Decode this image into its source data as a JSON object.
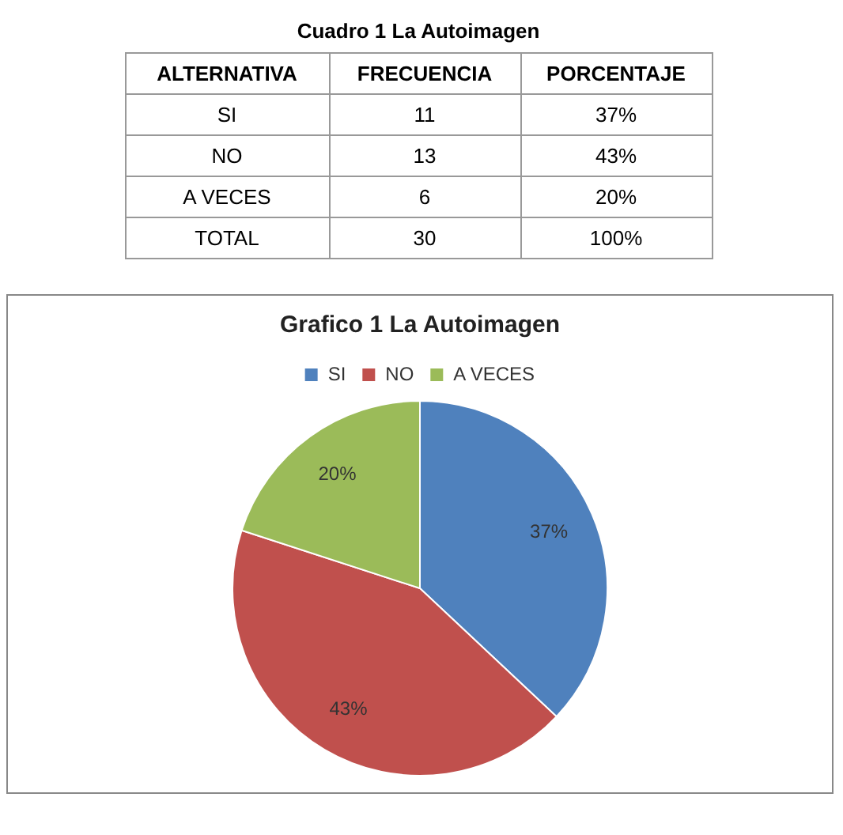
{
  "chart_data": [
    {
      "type": "other",
      "title": "Cuadro 1 La Autoimagen",
      "annotations": [
        "ALTERNATIVA",
        "FRECUENCIA",
        "PORCENTAJE",
        "SI",
        "11",
        "37%",
        "NO",
        "13",
        "43%",
        "A VECES",
        "6",
        "20%",
        "TOTAL",
        "30",
        "100%"
      ]
    },
    {
      "type": "pie",
      "title": "Grafico 1 La Autoimagen",
      "categories": [
        "SI",
        "NO",
        "A VECES"
      ],
      "values": [
        37,
        43,
        20
      ],
      "colors": [
        "#4f81bd",
        "#c0504d",
        "#9bbb59"
      ],
      "value_labels": [
        "37%",
        "43%",
        "20%"
      ],
      "legend": "top"
    }
  ]
}
